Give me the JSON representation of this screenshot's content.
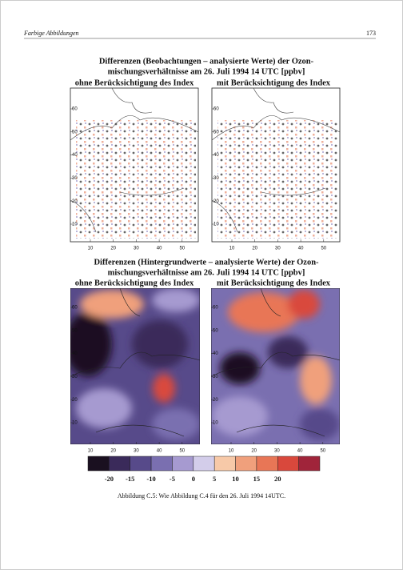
{
  "header": {
    "section": "Farbige Abbildungen",
    "page": "173"
  },
  "figure_top": {
    "title": [
      "Differenzen (Beobachtungen – analysierte Werte) der Ozon-",
      "mischungsverhältnisse am 26. Juli 1994  14 UTC [ppbv]"
    ],
    "panels": [
      "ohne Berücksichtigung des Index",
      "mit Berücksichtigung des Index"
    ]
  },
  "figure_bottom": {
    "title": [
      "Differenzen (Hintergrundwerte – analysierte Werte) der Ozon-",
      "mischungsverhältnisse am 26. Juli 1994  14 UTC [ppbv]"
    ],
    "panels": [
      "ohne Berücksichtigung des Index",
      "mit Berücksichtigung des Index"
    ]
  },
  "axes": {
    "yticks": [
      60,
      50,
      40,
      30,
      20,
      10
    ],
    "xticks": [
      10,
      20,
      30,
      40,
      50
    ]
  },
  "colorbar": {
    "labels": [
      -20,
      -15,
      -10,
      -5,
      0,
      5,
      10,
      15,
      20
    ],
    "colors": [
      "#1a1020",
      "#3a2a5a",
      "#574a8a",
      "#7a6fb0",
      "#a69ad0",
      "#d3cdea",
      "#f7c9a8",
      "#f0a07c",
      "#e87656",
      "#d9483c",
      "#a0243a"
    ]
  },
  "caption": "Abbildung C.5: Wie Abbildung C.4 für den 26. Juli 1994 14UTC."
}
